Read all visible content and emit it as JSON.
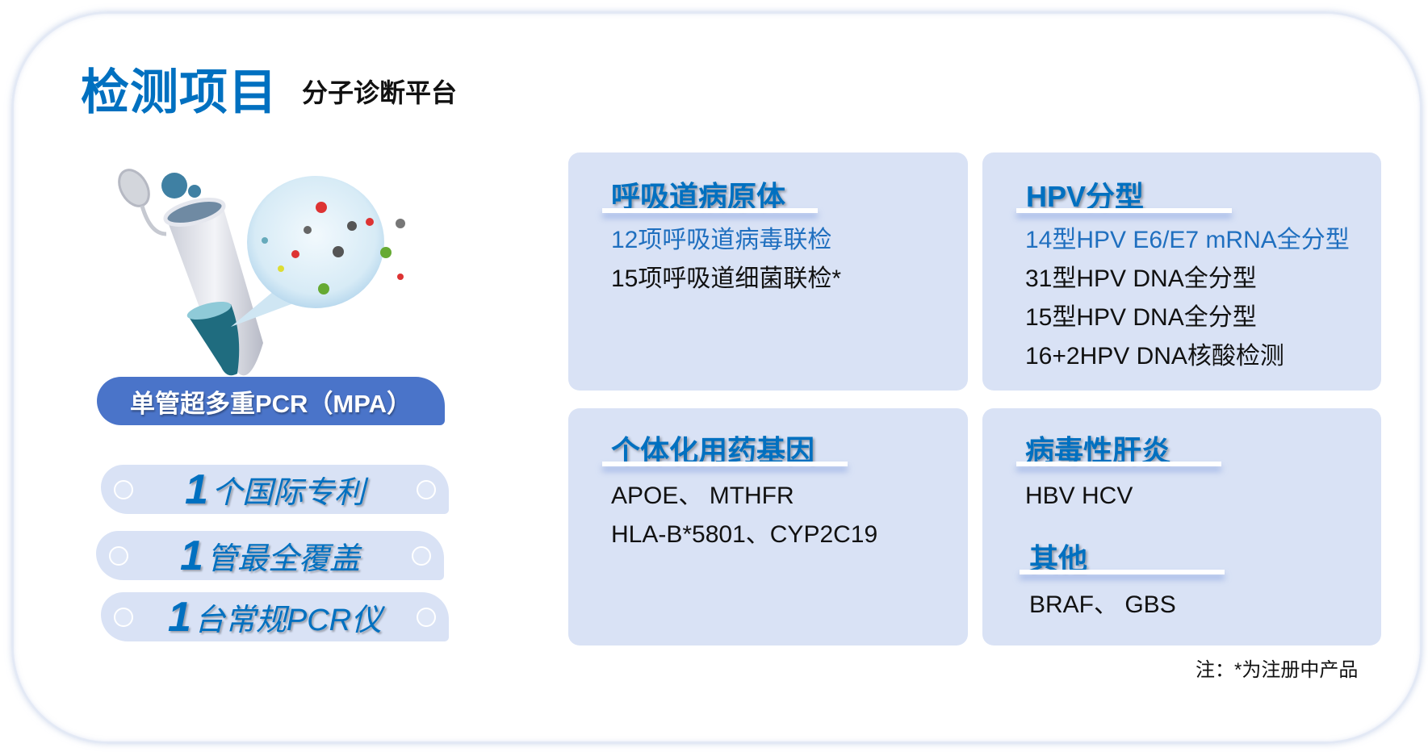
{
  "header": {
    "title": "检测项目",
    "subtitle": "分子诊断平台"
  },
  "left": {
    "platform_label": "单管超多重PCR（MPA）",
    "features": [
      {
        "num": "1",
        "text": "个国际专利"
      },
      {
        "num": "1",
        "text": "管最全覆盖"
      },
      {
        "num": "1",
        "text": "台常规PCR仪"
      }
    ]
  },
  "cards": [
    {
      "heading": "呼吸道病原体",
      "items": [
        {
          "text": "12项呼吸道病毒联检",
          "highlight": true
        },
        {
          "text": "15项呼吸道细菌联检*"
        }
      ]
    },
    {
      "heading": "HPV分型",
      "items": [
        {
          "text": "14型HPV E6/E7 mRNA全分型",
          "highlight": true
        },
        {
          "text": "31型HPV DNA全分型"
        },
        {
          "text": "15型HPV DNA全分型"
        },
        {
          "text": "16+2HPV DNA核酸检测"
        }
      ]
    },
    {
      "heading": "个体化用药基因",
      "items": [
        {
          "text": "APOE、 MTHFR"
        },
        {
          "text": "HLA-B*5801、CYP2C19"
        }
      ]
    },
    {
      "heading": "病毒性肝炎",
      "items": [
        {
          "text": "HBV HCV"
        }
      ],
      "heading2": "其他",
      "items2": [
        {
          "text": "BRAF、 GBS"
        }
      ]
    }
  ],
  "footnote": "注：*为注册中产品",
  "colors": {
    "accent": "#0070c0",
    "card_bg": "#d9e2f5",
    "pill": "#4a74c9",
    "highlight_text": "#1f6fbf"
  }
}
